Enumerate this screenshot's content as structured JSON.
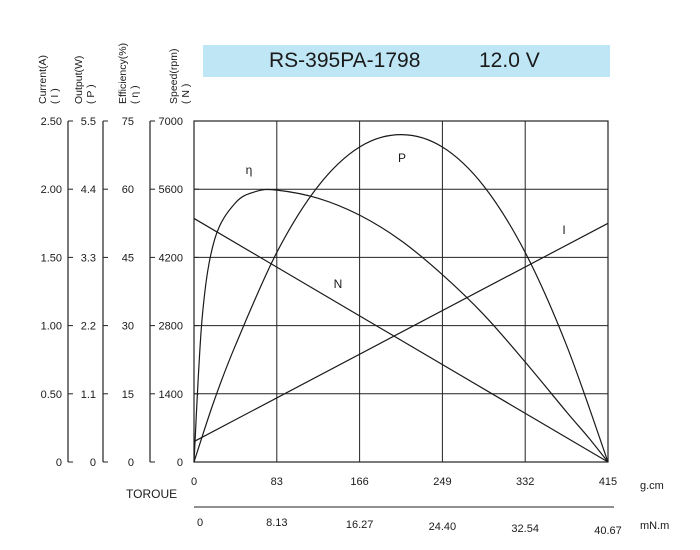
{
  "chart_data": {
    "type": "line",
    "title": {
      "model": "RS-395PA-1798",
      "voltage": "12.0 V"
    },
    "axes": [
      {
        "label": "Current(A)",
        "symbol": "( I )",
        "ticks": [
          "0",
          "0.50",
          "1.00",
          "1.50",
          "2.00",
          "2.50"
        ]
      },
      {
        "label": "Output(W)",
        "symbol": "( P )",
        "ticks": [
          "0",
          "1.1",
          "2.2",
          "3.3",
          "4.4",
          "5.5"
        ]
      },
      {
        "label": "Efficiency(%)",
        "symbol": "( η )",
        "ticks": [
          "0",
          "15",
          "30",
          "45",
          "60",
          "75"
        ]
      },
      {
        "label": "Speed(rpm)",
        "symbol": "( N )",
        "ticks": [
          "0",
          "1400",
          "2800",
          "4200",
          "5600",
          "7000"
        ]
      }
    ],
    "xaxis": {
      "name": "TOROUE",
      "unit_top": "g.cm",
      "unit_bottom": "mN.m",
      "ticks_gcm": [
        "0",
        "83",
        "166",
        "249",
        "332",
        "415"
      ],
      "ticks_mnm": [
        "0",
        "8.13",
        "16.27",
        "24.40",
        "32.54",
        "40.67"
      ],
      "xlim": [
        0,
        415
      ]
    },
    "grid": true,
    "series": [
      {
        "name": "N",
        "unit": "rpm",
        "x": [
          0,
          415
        ],
        "y": [
          5000,
          0
        ]
      },
      {
        "name": "I",
        "unit": "A",
        "x": [
          0,
          415
        ],
        "y": [
          0.15,
          1.75
        ]
      },
      {
        "name": "P",
        "unit": "W",
        "x": [
          0,
          20,
          41.5,
          83,
          124.5,
          166,
          207.5,
          249,
          290.5,
          332,
          373.5,
          415
        ],
        "y": [
          0,
          0.98,
          1.88,
          3.38,
          4.45,
          5.08,
          5.28,
          5.08,
          4.45,
          3.38,
          1.88,
          0
        ]
      },
      {
        "name": "η",
        "unit": "%",
        "x": [
          0,
          8.3,
          20.75,
          41.5,
          62.25,
          83,
          124.5,
          166,
          207.5,
          249,
          290.5,
          332,
          373.5,
          395,
          415
        ],
        "y": [
          0,
          32,
          49,
          57,
          59.5,
          59.8,
          58,
          54.3,
          48.7,
          41.2,
          32.4,
          22,
          11,
          5.5,
          0
        ]
      }
    ]
  }
}
